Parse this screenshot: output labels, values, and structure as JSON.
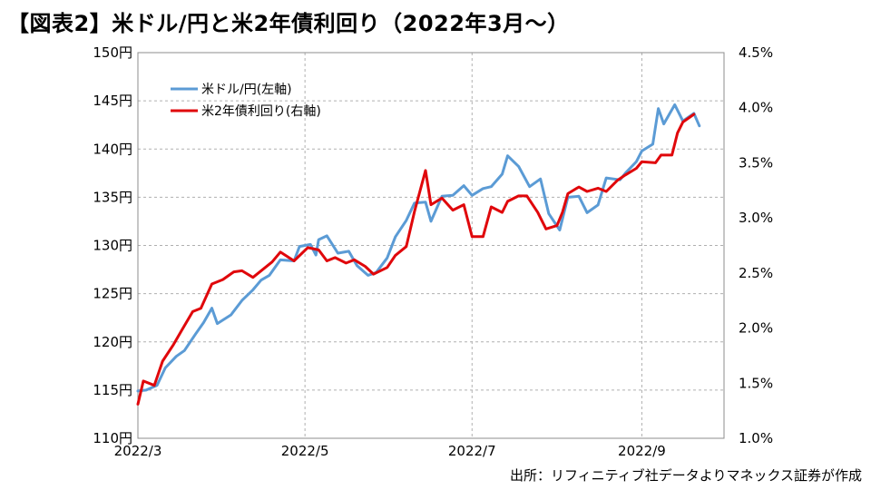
{
  "title": "【図表2】米ドル/円と米2年債利回り（2022年3月〜）",
  "source": "出所：リフィニティブ社データよりマネックス証券が作成",
  "chart_data": {
    "type": "line",
    "title": "【図表2】米ドル/円と米2年債利回り（2022年3月〜）",
    "x_axis": {
      "type": "date",
      "ticks": [
        "2022/3",
        "2022/5",
        "2022/7",
        "2022/9"
      ],
      "range": [
        "2022-03-01",
        "2022-10-01"
      ]
    },
    "y_left": {
      "ticks": [
        "110円",
        "115円",
        "120円",
        "125円",
        "130円",
        "135円",
        "140円",
        "145円",
        "150円"
      ],
      "range": [
        110,
        150
      ]
    },
    "y_right": {
      "ticks": [
        "1.0%",
        "1.5%",
        "2.0%",
        "2.5%",
        "3.0%",
        "3.5%",
        "4.0%",
        "4.5%"
      ],
      "range": [
        1.0,
        4.5
      ]
    },
    "grid": true,
    "legend_position": "top-left",
    "series": [
      {
        "name": "米ドル/円(左軸)",
        "axis": "left",
        "color": "#5b9bd5",
        "points": [
          [
            "2022-03-01",
            114.9
          ],
          [
            "2022-03-04",
            115.0
          ],
          [
            "2022-03-08",
            115.5
          ],
          [
            "2022-03-11",
            117.3
          ],
          [
            "2022-03-15",
            118.5
          ],
          [
            "2022-03-18",
            119.1
          ],
          [
            "2022-03-22",
            120.8
          ],
          [
            "2022-03-25",
            122.0
          ],
          [
            "2022-03-28",
            123.5
          ],
          [
            "2022-03-30",
            121.9
          ],
          [
            "2022-04-04",
            122.8
          ],
          [
            "2022-04-08",
            124.3
          ],
          [
            "2022-04-12",
            125.4
          ],
          [
            "2022-04-15",
            126.4
          ],
          [
            "2022-04-18",
            126.9
          ],
          [
            "2022-04-22",
            128.5
          ],
          [
            "2022-04-27",
            128.4
          ],
          [
            "2022-04-29",
            129.9
          ],
          [
            "2022-05-03",
            130.1
          ],
          [
            "2022-05-05",
            129.0
          ],
          [
            "2022-05-06",
            130.6
          ],
          [
            "2022-05-09",
            131.0
          ],
          [
            "2022-05-13",
            129.2
          ],
          [
            "2022-05-17",
            129.4
          ],
          [
            "2022-05-20",
            127.9
          ],
          [
            "2022-05-24",
            126.9
          ],
          [
            "2022-05-27",
            127.2
          ],
          [
            "2022-05-31",
            128.7
          ],
          [
            "2022-06-03",
            130.9
          ],
          [
            "2022-06-07",
            132.6
          ],
          [
            "2022-06-10",
            134.4
          ],
          [
            "2022-06-14",
            134.5
          ],
          [
            "2022-06-16",
            132.5
          ],
          [
            "2022-06-20",
            135.1
          ],
          [
            "2022-06-24",
            135.2
          ],
          [
            "2022-06-28",
            136.2
          ],
          [
            "2022-07-01",
            135.2
          ],
          [
            "2022-07-05",
            135.9
          ],
          [
            "2022-07-08",
            136.1
          ],
          [
            "2022-07-12",
            137.4
          ],
          [
            "2022-07-14",
            139.3
          ],
          [
            "2022-07-18",
            138.2
          ],
          [
            "2022-07-22",
            136.1
          ],
          [
            "2022-07-26",
            136.9
          ],
          [
            "2022-07-29",
            133.3
          ],
          [
            "2022-08-02",
            131.6
          ],
          [
            "2022-08-05",
            135.0
          ],
          [
            "2022-08-09",
            135.1
          ],
          [
            "2022-08-12",
            133.4
          ],
          [
            "2022-08-16",
            134.2
          ],
          [
            "2022-08-19",
            137.0
          ],
          [
            "2022-08-24",
            136.8
          ],
          [
            "2022-08-26",
            137.5
          ],
          [
            "2022-08-30",
            138.7
          ],
          [
            "2022-09-01",
            139.8
          ],
          [
            "2022-09-05",
            140.5
          ],
          [
            "2022-09-07",
            144.2
          ],
          [
            "2022-09-09",
            142.6
          ],
          [
            "2022-09-13",
            144.6
          ],
          [
            "2022-09-16",
            142.9
          ],
          [
            "2022-09-20",
            143.7
          ],
          [
            "2022-09-22",
            142.4
          ]
        ]
      },
      {
        "name": "米2年債利回り(右軸)",
        "axis": "right",
        "color": "#e0070b",
        "points": [
          [
            "2022-03-01",
            1.31
          ],
          [
            "2022-03-03",
            1.52
          ],
          [
            "2022-03-07",
            1.48
          ],
          [
            "2022-03-10",
            1.7
          ],
          [
            "2022-03-14",
            1.85
          ],
          [
            "2022-03-17",
            1.98
          ],
          [
            "2022-03-21",
            2.15
          ],
          [
            "2022-03-24",
            2.18
          ],
          [
            "2022-03-28",
            2.4
          ],
          [
            "2022-04-01",
            2.44
          ],
          [
            "2022-04-05",
            2.51
          ],
          [
            "2022-04-08",
            2.52
          ],
          [
            "2022-04-12",
            2.46
          ],
          [
            "2022-04-15",
            2.52
          ],
          [
            "2022-04-19",
            2.6
          ],
          [
            "2022-04-22",
            2.69
          ],
          [
            "2022-04-27",
            2.61
          ],
          [
            "2022-05-02",
            2.73
          ],
          [
            "2022-05-06",
            2.71
          ],
          [
            "2022-05-09",
            2.61
          ],
          [
            "2022-05-12",
            2.64
          ],
          [
            "2022-05-16",
            2.59
          ],
          [
            "2022-05-19",
            2.62
          ],
          [
            "2022-05-23",
            2.56
          ],
          [
            "2022-05-26",
            2.49
          ],
          [
            "2022-05-31",
            2.55
          ],
          [
            "2022-06-03",
            2.66
          ],
          [
            "2022-06-07",
            2.74
          ],
          [
            "2022-06-10",
            3.06
          ],
          [
            "2022-06-14",
            3.43
          ],
          [
            "2022-06-16",
            3.12
          ],
          [
            "2022-06-20",
            3.18
          ],
          [
            "2022-06-24",
            3.07
          ],
          [
            "2022-06-28",
            3.12
          ],
          [
            "2022-07-01",
            2.83
          ],
          [
            "2022-07-05",
            2.83
          ],
          [
            "2022-07-08",
            3.1
          ],
          [
            "2022-07-12",
            3.05
          ],
          [
            "2022-07-14",
            3.15
          ],
          [
            "2022-07-18",
            3.2
          ],
          [
            "2022-07-21",
            3.2
          ],
          [
            "2022-07-25",
            3.05
          ],
          [
            "2022-07-28",
            2.9
          ],
          [
            "2022-08-01",
            2.93
          ],
          [
            "2022-08-03",
            3.05
          ],
          [
            "2022-08-05",
            3.22
          ],
          [
            "2022-08-09",
            3.28
          ],
          [
            "2022-08-12",
            3.24
          ],
          [
            "2022-08-16",
            3.27
          ],
          [
            "2022-08-19",
            3.24
          ],
          [
            "2022-08-23",
            3.34
          ],
          [
            "2022-08-26",
            3.39
          ],
          [
            "2022-08-30",
            3.45
          ],
          [
            "2022-09-01",
            3.51
          ],
          [
            "2022-09-06",
            3.5
          ],
          [
            "2022-09-08",
            3.57
          ],
          [
            "2022-09-12",
            3.57
          ],
          [
            "2022-09-14",
            3.77
          ],
          [
            "2022-09-16",
            3.87
          ],
          [
            "2022-09-20",
            3.94
          ]
        ]
      }
    ]
  }
}
